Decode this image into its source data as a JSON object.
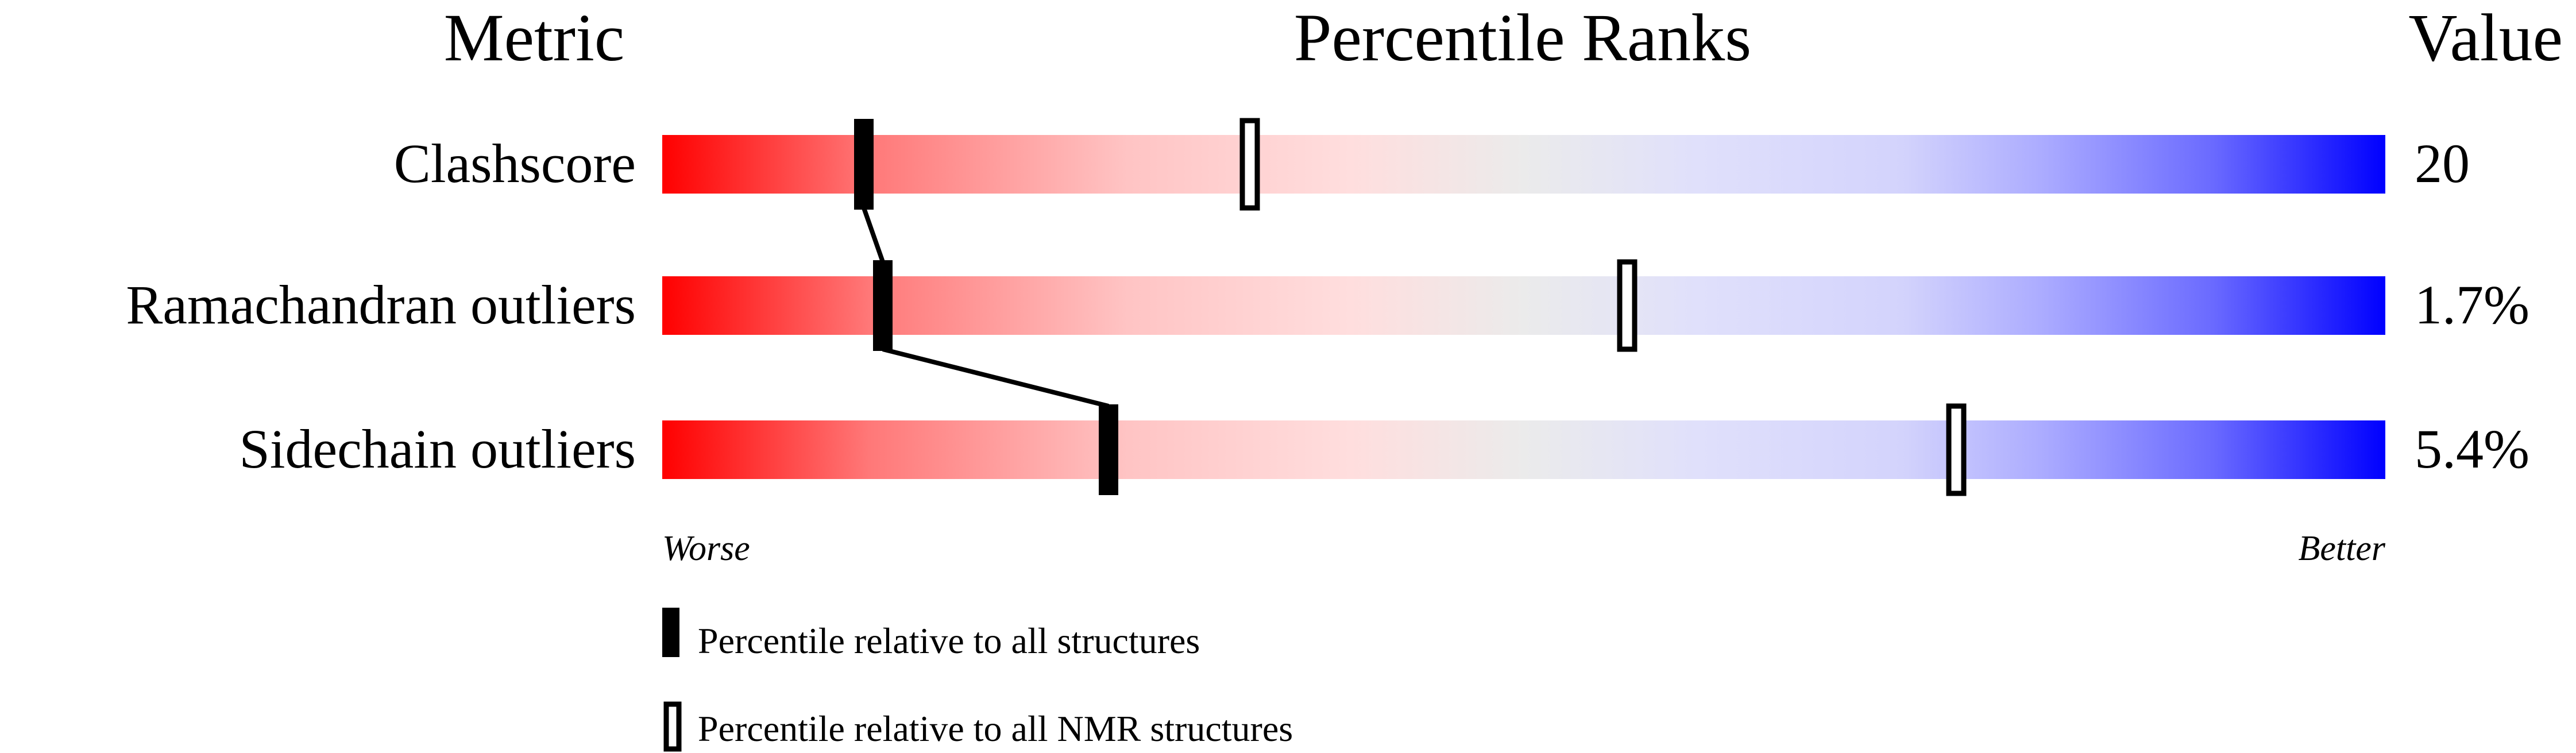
{
  "chart_data": {
    "type": "bar",
    "headers": {
      "metric": "Metric",
      "ranks": "Percentile Ranks",
      "value": "Value"
    },
    "xlim": [
      0,
      100
    ],
    "axis_labels": {
      "left": "Worse",
      "right": "Better"
    },
    "gradient_colors": [
      "#ff0000",
      "#ffdede",
      "#ebebeb",
      "#e0e0fb",
      "#0000ff"
    ],
    "rows": [
      {
        "metric": "Clashscore",
        "value": "20",
        "percentile_all": 11.7,
        "percentile_nmr": 34.1
      },
      {
        "metric": "Ramachandran outliers",
        "value": "1.7%",
        "percentile_all": 12.8,
        "percentile_nmr": 56.0
      },
      {
        "metric": "Sidechain outliers",
        "value": "5.4%",
        "percentile_all": 25.9,
        "percentile_nmr": 75.1
      }
    ],
    "legend": [
      {
        "label": "Percentile relative to all structures",
        "marker": "filled"
      },
      {
        "label": "Percentile relative to all NMR structures",
        "marker": "outlined"
      }
    ]
  }
}
